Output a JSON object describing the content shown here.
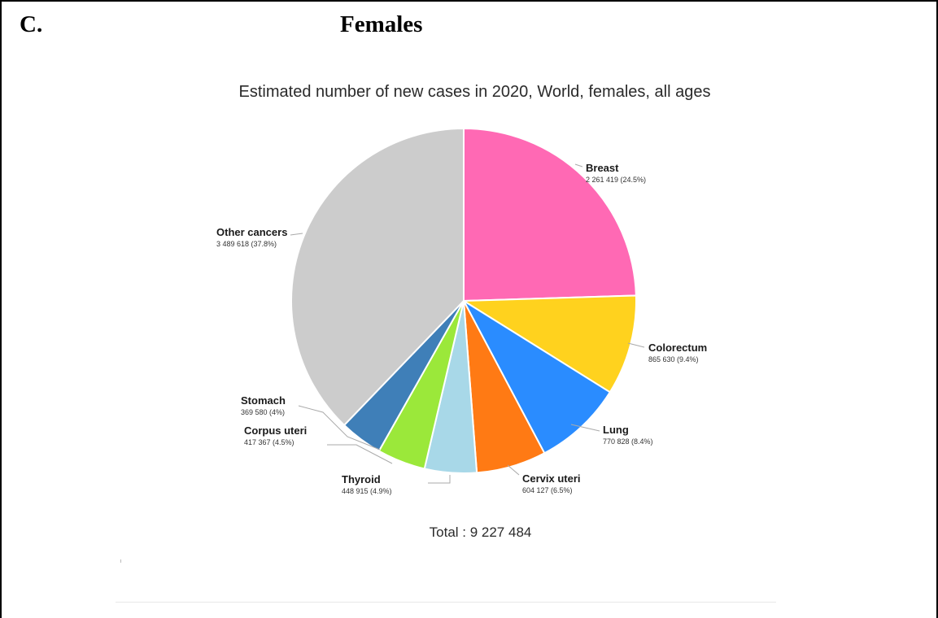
{
  "panel": {
    "label": "C.",
    "heading": "Females"
  },
  "chart_data": {
    "type": "pie",
    "title": "Estimated number of new cases in 2020, World, females, all ages",
    "total_label": "Total : 9 227 484",
    "total": 9227484,
    "slices": [
      {
        "name": "Breast",
        "value": 2261419,
        "percent": 24.5,
        "value_label": "2 261 419 (24.5%)",
        "color": "#ff69b4"
      },
      {
        "name": "Colorectum",
        "value": 865630,
        "percent": 9.4,
        "value_label": "865 630 (9.4%)",
        "color": "#ffd21e"
      },
      {
        "name": "Lung",
        "value": 770828,
        "percent": 8.4,
        "value_label": "770 828 (8.4%)",
        "color": "#2a8cff"
      },
      {
        "name": "Cervix uteri",
        "value": 604127,
        "percent": 6.5,
        "value_label": "604 127 (6.5%)",
        "color": "#ff7a14"
      },
      {
        "name": "Thyroid",
        "value": 448915,
        "percent": 4.9,
        "value_label": "448 915 (4.9%)",
        "color": "#a8d8e8"
      },
      {
        "name": "Corpus uteri",
        "value": 417367,
        "percent": 4.5,
        "value_label": "417 367 (4.5%)",
        "color": "#9be83a"
      },
      {
        "name": "Stomach",
        "value": 369580,
        "percent": 4,
        "value_label": "369 580 (4%)",
        "color": "#3f7fb8"
      },
      {
        "name": "Other cancers",
        "value": 3489618,
        "percent": 37.8,
        "value_label": "3 489 618 (37.8%)",
        "color": "#cccccc"
      }
    ]
  }
}
